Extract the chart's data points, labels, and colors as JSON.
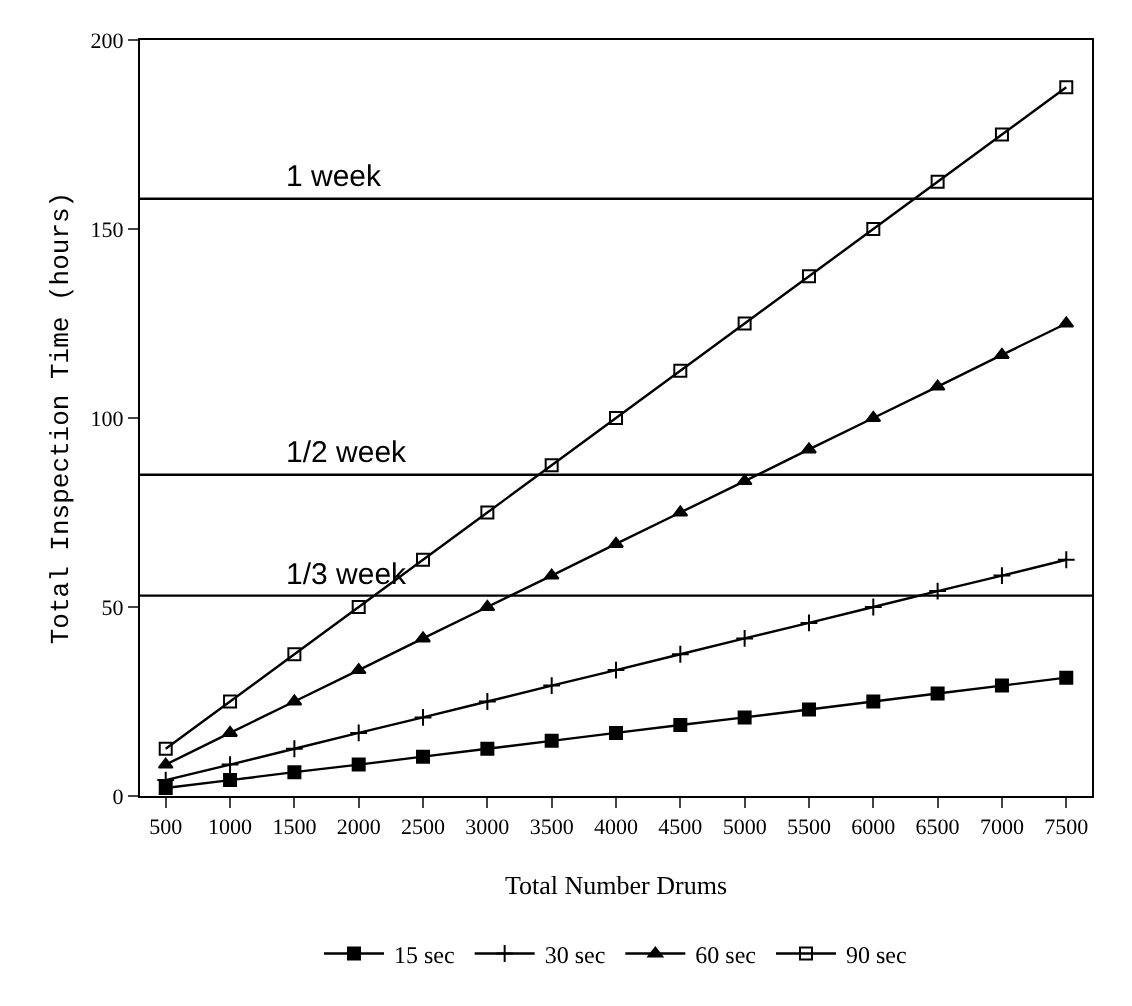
{
  "chart_data": {
    "type": "line",
    "xlabel": "Total Number Drums",
    "ylabel": "Total Inspection Time (hours)",
    "x": [
      500,
      1000,
      1500,
      2000,
      2500,
      3000,
      3500,
      4000,
      4500,
      5000,
      5500,
      6000,
      6500,
      7000,
      7500
    ],
    "series": [
      {
        "name": "15 sec",
        "color": "#000000",
        "marker": "square",
        "values": [
          2.1,
          4.2,
          6.3,
          8.3,
          10.4,
          12.5,
          14.6,
          16.7,
          18.8,
          20.8,
          22.9,
          25,
          27.1,
          29.2,
          31.3
        ]
      },
      {
        "name": "30 sec",
        "color": "#000000",
        "marker": "cross",
        "values": [
          4.2,
          8.3,
          12.5,
          16.7,
          20.8,
          25,
          29.2,
          33.3,
          37.5,
          41.7,
          45.8,
          50,
          54.2,
          58.3,
          62.5
        ]
      },
      {
        "name": "60 sec",
        "color": "#000000",
        "marker": "triangle",
        "values": [
          8.3,
          16.7,
          25,
          33.3,
          41.7,
          50,
          58.3,
          66.7,
          75,
          83.3,
          91.7,
          100,
          108.3,
          116.7,
          125
        ]
      },
      {
        "name": "90 sec",
        "color": "#000000",
        "marker": "square-open",
        "values": [
          12.5,
          25,
          37.5,
          50,
          62.5,
          75,
          87.5,
          100,
          112.5,
          125,
          137.5,
          150,
          162.5,
          175,
          187.5
        ]
      }
    ],
    "xlim": [
      300,
      7700
    ],
    "xticks": [
      500,
      1000,
      1500,
      2000,
      2500,
      3000,
      3500,
      4000,
      4500,
      5000,
      5500,
      6000,
      6500,
      7000,
      7500
    ],
    "ylim": [
      0,
      200
    ],
    "yticks": [
      0,
      50,
      100,
      150,
      200
    ],
    "ref_lines": [
      {
        "axis": "y",
        "value": 158,
        "label": "1 week",
        "color": "#000000"
      },
      {
        "axis": "y",
        "value": 85,
        "label": "1/2 week",
        "color": "#000000"
      },
      {
        "axis": "y",
        "value": 53,
        "label": "1/3 week",
        "color": "#000000"
      }
    ],
    "legend": "bottom",
    "grid": false
  }
}
